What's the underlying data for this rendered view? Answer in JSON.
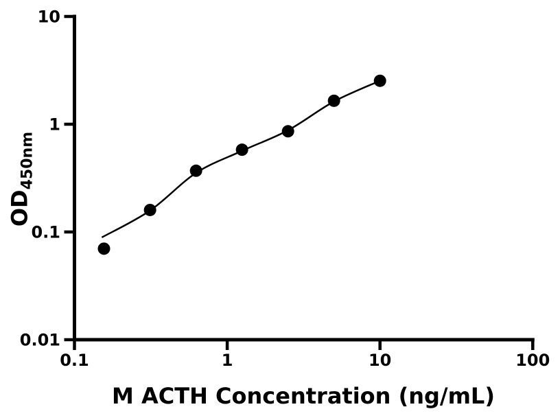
{
  "chart_data": {
    "type": "scatter",
    "title": "",
    "xlabel": "M ACTH Concentration (ng/mL)",
    "ylabel": "OD",
    "ylabel_subscript": "450nm",
    "x_scale": "log",
    "y_scale": "log",
    "xlim": [
      0.1,
      100
    ],
    "ylim": [
      0.01,
      10
    ],
    "x_ticks": [
      0.1,
      1,
      10,
      100
    ],
    "x_tick_labels": [
      "0.1",
      "1",
      "10",
      "100"
    ],
    "y_ticks": [
      0.01,
      0.1,
      1,
      10
    ],
    "y_tick_labels": [
      "0.01",
      "0.1",
      "1",
      "10"
    ],
    "grid": false,
    "legend": null,
    "points": [
      {
        "x": 0.156,
        "y": 0.07
      },
      {
        "x": 0.3125,
        "y": 0.16
      },
      {
        "x": 0.625,
        "y": 0.37
      },
      {
        "x": 1.25,
        "y": 0.58
      },
      {
        "x": 2.5,
        "y": 0.86
      },
      {
        "x": 5,
        "y": 1.65
      },
      {
        "x": 10,
        "y": 2.53
      }
    ],
    "fit_curve": [
      {
        "x": 0.151,
        "y": 0.089
      },
      {
        "x": 0.3125,
        "y": 0.158
      },
      {
        "x": 0.625,
        "y": 0.353
      },
      {
        "x": 1.25,
        "y": 0.566
      },
      {
        "x": 2.5,
        "y": 0.878
      },
      {
        "x": 5,
        "y": 1.625
      },
      {
        "x": 10,
        "y": 2.53
      }
    ],
    "marker_color": "#000000",
    "line_color": "#000000",
    "axis_color": "#000000",
    "background": "#ffffff"
  }
}
